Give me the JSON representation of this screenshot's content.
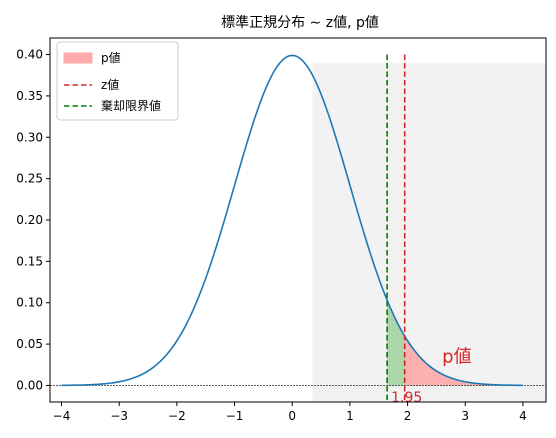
{
  "chart_data": {
    "type": "line",
    "title": "標準正規分布 ∼ z値, p値",
    "xlabel": "",
    "ylabel": "",
    "xlim": [
      -4.2,
      4.4
    ],
    "ylim": [
      -0.02,
      0.42
    ],
    "xticks": [
      "−4",
      "−3",
      "−2",
      "−1",
      "0",
      "1",
      "2",
      "3",
      "4"
    ],
    "yticks": [
      "0.00",
      "0.05",
      "0.10",
      "0.15",
      "0.20",
      "0.25",
      "0.30",
      "0.35",
      "0.40"
    ],
    "grid": false,
    "legend_position": "top-left",
    "series": [
      {
        "name": "",
        "kind": "normal-pdf",
        "mean": 0,
        "sd": 1,
        "x_range": [
          -4,
          4
        ],
        "color": "#1f77b4"
      }
    ],
    "shaded_background": {
      "x_from": 0.35,
      "x_to": 4.4,
      "y_from": -0.02,
      "y_to": 0.39,
      "color": "#f2f2f2"
    },
    "critical_region": {
      "x_from": 1.645,
      "x_to": 1.95,
      "color": "#2ca02c"
    },
    "p_region": {
      "x_from": 1.95,
      "x_to": 4,
      "color": "#ff9999"
    },
    "vlines": [
      {
        "name": "z値",
        "x": 1.95,
        "color": "#d62728"
      },
      {
        "name": "棄却限界値",
        "x": 1.645,
        "color": "#008000"
      }
    ],
    "legend": [
      {
        "label": "p値",
        "kind": "patch",
        "color": "#ffaaaa"
      },
      {
        "label": "z値",
        "kind": "dash",
        "color": "#d62728"
      },
      {
        "label": "棄却限界値",
        "kind": "dash",
        "color": "#008000"
      }
    ],
    "annotations": [
      {
        "text": "1.95",
        "x": 1.95,
        "y": -0.015,
        "color": "#d62728"
      },
      {
        "text": "p値",
        "x": 2.6,
        "y": 0.028,
        "color": "#d62728"
      }
    ],
    "zero_line": {
      "y": 0,
      "color": "#000000"
    }
  }
}
